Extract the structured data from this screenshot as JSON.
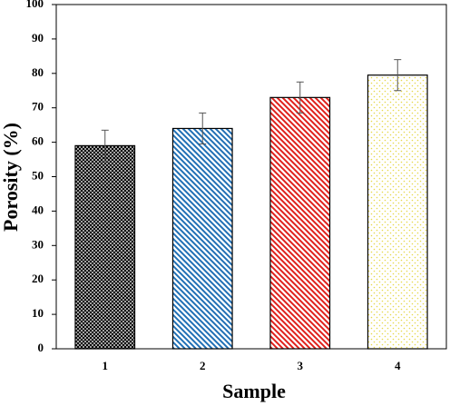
{
  "chart_data": {
    "type": "bar",
    "x_label": "Sample",
    "y_label": "Porosity (%)",
    "categories": [
      "1",
      "2",
      "3",
      "4"
    ],
    "values": [
      59,
      64,
      73,
      79.5
    ],
    "errors": [
      4.5,
      4.5,
      4.5,
      4.5
    ],
    "colors": [
      "#000000",
      "#1f6fb5",
      "#e0201b",
      "#e6d84a"
    ],
    "patterns": [
      "crosshatch",
      "diagonal",
      "diagonal",
      "dots"
    ],
    "ylim": [
      0,
      100
    ],
    "yticks": [
      0,
      10,
      20,
      30,
      40,
      50,
      60,
      70,
      80,
      90,
      100
    ],
    "grid": false
  }
}
